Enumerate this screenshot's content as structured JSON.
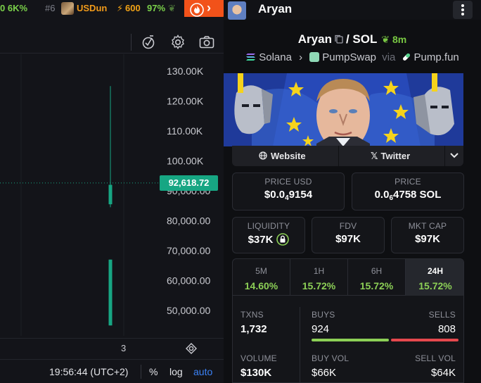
{
  "ticker": {
    "item1_change": "0 6K%",
    "item2_rank": "#6",
    "item2_symbol": "USDun",
    "item2_boost": "600",
    "item2_change": "97%"
  },
  "chart": {
    "y_ticks": [
      "130.00K",
      "120.00K",
      "110.00K",
      "100.00K",
      "90,000.00",
      "80,000.00",
      "70,000.00",
      "60,000.00",
      "50,000.00"
    ],
    "current_price_label": "92,618.72",
    "current_price": 92618.72,
    "x_tick": "3",
    "time": "19:56:44 (UTC+2)",
    "pct_label": "%",
    "log_label": "log",
    "auto_label": "auto",
    "candles": [
      {
        "open": 92000,
        "close": 85500,
        "high": 125000,
        "low": 84500
      },
      {
        "open": 67000,
        "close": 45000,
        "high": 67000,
        "low": 45000
      }
    ]
  },
  "header": {
    "name": "Aryan"
  },
  "pair": {
    "base": "Aryan",
    "quote": "SOL",
    "age": "8m",
    "chain": "Solana",
    "dex": "PumpSwap",
    "via_label": "via",
    "launchpad": "Pump.fun"
  },
  "links": {
    "website": "Website",
    "twitter": "Twitter"
  },
  "metrics": {
    "price_usd_label": "PRICE USD",
    "price_usd_prefix": "$0.0",
    "price_usd_zeros": "4",
    "price_usd_digits": "9154",
    "price_sol_label": "PRICE",
    "price_sol_prefix": "0.0",
    "price_sol_zeros": "6",
    "price_sol_digits": "4758 SOL",
    "liquidity_label": "LIQUIDITY",
    "liquidity": "$37K",
    "fdv_label": "FDV",
    "fdv": "$97K",
    "mktcap_label": "MKT CAP",
    "mktcap": "$97K"
  },
  "timeframes": [
    {
      "label": "5M",
      "change": "14.60%"
    },
    {
      "label": "1H",
      "change": "15.72%"
    },
    {
      "label": "6H",
      "change": "15.72%"
    },
    {
      "label": "24H",
      "change": "15.72%"
    }
  ],
  "stats": {
    "txns_label": "TXNS",
    "txns": "1,732",
    "buys_label": "BUYS",
    "buys": "924",
    "sells_label": "SELLS",
    "sells": "808",
    "volume_label": "VOLUME",
    "volume": "$130K",
    "buy_vol_label": "BUY VOL",
    "buy_vol": "$66K",
    "sell_vol_label": "SELL VOL",
    "sell_vol": "$64K",
    "buy_ratio": 0.533
  },
  "colors": {
    "accent_green": "#8ccf56",
    "price_tag": "#17a683",
    "sell_red": "#e5484d",
    "fire": "#f2521a",
    "link_blue": "#3b82f6"
  }
}
